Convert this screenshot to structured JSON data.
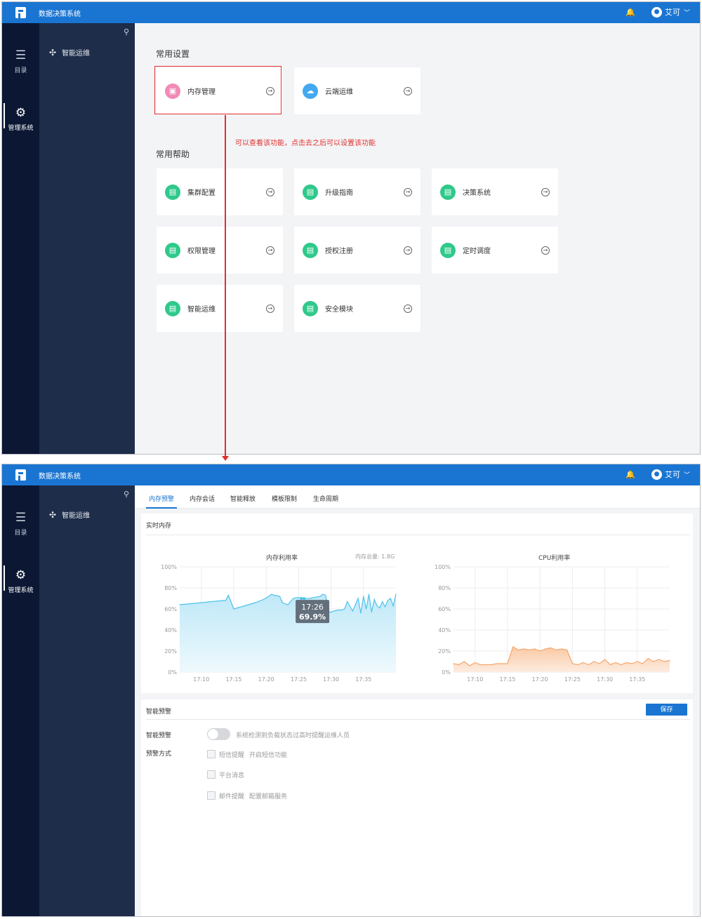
{
  "app": {
    "title": "数据决策系统",
    "user": "艾可"
  },
  "rail": [
    {
      "icon": "list-icon",
      "label": "目录"
    },
    {
      "icon": "gear-icon",
      "label": "管理系统"
    }
  ],
  "subnav": {
    "item": "智能运维"
  },
  "screen1": {
    "section_settings": "常用设置",
    "settings_cards": [
      {
        "label": "内存管理",
        "icon": "memory-icon",
        "color": "#f08bb5"
      },
      {
        "label": "云端运维",
        "icon": "cloud-ops-icon",
        "color": "#43a9ef"
      }
    ],
    "section_help": "常用帮助",
    "help_cards": [
      {
        "label": "集群配置"
      },
      {
        "label": "升级指南"
      },
      {
        "label": "决策系统"
      },
      {
        "label": "权限管理"
      },
      {
        "label": "授权注册"
      },
      {
        "label": "定时调度"
      },
      {
        "label": "智能运维"
      },
      {
        "label": "安全模块"
      }
    ],
    "annotation": "可以查看该功能，点击去之后可以设置该功能"
  },
  "screen2": {
    "tabs": [
      "内存预警",
      "内存会话",
      "智能释放",
      "模板限制",
      "生命周期"
    ],
    "realtime_title": "实时内存",
    "memory_chart_title": "内存利用率",
    "memory_total": "内存总量: 1.8G",
    "cpu_chart_title": "CPU利用率",
    "tooltip_time": "17:26",
    "tooltip_value": "69.9%",
    "warning_section": "智能预警",
    "save_label": "保存",
    "toggle_label": "智能预警",
    "toggle_desc": "系统检测到负载状态过高时提醒运维人员",
    "method_label": "预警方式",
    "methods": [
      {
        "label": "短信提醒",
        "extra": "开启短信功能"
      },
      {
        "label": "平台消息",
        "extra": ""
      },
      {
        "label": "邮件提醒",
        "extra": "配置邮箱服务"
      }
    ]
  },
  "chart_data": [
    {
      "type": "area",
      "title": "内存利用率",
      "subtitle": "内存总量: 1.8G",
      "x_ticks": [
        "17:10",
        "17:15",
        "17:20",
        "17:25",
        "17:30",
        "17:35"
      ],
      "y_ticks": [
        "0%",
        "20%",
        "40%",
        "60%",
        "80%",
        "100%"
      ],
      "ylim": [
        0,
        100
      ],
      "x_minutes": [
        0,
        2,
        4,
        6,
        8,
        8.5,
        9,
        10,
        12,
        14,
        15.5,
        16.5,
        17,
        17.5,
        18.5,
        19,
        20,
        21,
        22,
        22.5,
        23,
        24,
        25,
        26,
        26.5,
        27,
        27.5,
        28,
        28.5,
        29,
        29.5,
        30,
        30.5,
        31,
        32,
        33,
        33.5,
        34,
        34.5,
        35,
        35.5,
        36,
        36.5,
        37,
        37.5,
        38,
        38.5,
        39,
        39.5,
        40
      ],
      "values": [
        64,
        65,
        66,
        67,
        68,
        68,
        73,
        60,
        63,
        66,
        69,
        72,
        74,
        73,
        72,
        66,
        64,
        70,
        71,
        70,
        69.9,
        70,
        71,
        72,
        74,
        73,
        57,
        57,
        58,
        58.5,
        59,
        59,
        60,
        67,
        58,
        70,
        56,
        72,
        60,
        74,
        57,
        69,
        63,
        61,
        67,
        62,
        68,
        70,
        63,
        74
      ],
      "grid": true
    },
    {
      "type": "area",
      "title": "CPU利用率",
      "x_ticks": [
        "17:10",
        "17:15",
        "17:20",
        "17:25",
        "17:30",
        "17:35"
      ],
      "y_ticks": [
        "0%",
        "20%",
        "40%",
        "60%",
        "80%",
        "100%"
      ],
      "ylim": [
        0,
        100
      ],
      "x_minutes": [
        0,
        1,
        2,
        3,
        4,
        5,
        6,
        7,
        8,
        9,
        10,
        11,
        12,
        13,
        14,
        15,
        16,
        17,
        18,
        19,
        20,
        21,
        22,
        23,
        24,
        25,
        26,
        27,
        28,
        29,
        30,
        31,
        32,
        33,
        34,
        35,
        36,
        37,
        38,
        39,
        40
      ],
      "values": [
        8,
        7,
        10,
        6,
        9,
        7,
        7,
        7,
        8,
        8,
        8,
        24,
        21,
        22,
        21,
        22,
        20,
        22,
        23,
        21,
        22,
        21,
        8,
        7,
        9,
        7,
        10,
        8,
        12,
        7,
        9,
        7,
        9,
        8,
        10,
        8,
        13,
        10,
        12,
        10,
        11
      ],
      "grid": true
    }
  ]
}
